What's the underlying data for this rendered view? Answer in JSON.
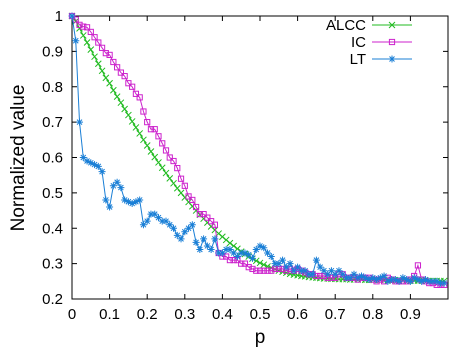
{
  "chart_data": {
    "type": "line",
    "xlabel": "p",
    "ylabel": "Normalized value",
    "xlim": [
      0,
      1
    ],
    "ylim": [
      0.2,
      1
    ],
    "xticks": [
      0,
      0.1,
      0.2,
      0.3,
      0.4,
      0.5,
      0.6,
      0.7,
      0.8,
      0.9
    ],
    "yticks": [
      0.2,
      0.3,
      0.4,
      0.5,
      0.6,
      0.7,
      0.8,
      0.9,
      1
    ],
    "grid": false,
    "legend_position": "top-right",
    "series": [
      {
        "name": "ALCC",
        "color": "#22bb22",
        "marker": "x",
        "x": [
          0.0,
          0.01,
          0.02,
          0.03,
          0.04,
          0.05,
          0.06,
          0.07,
          0.08,
          0.09,
          0.1,
          0.11,
          0.12,
          0.13,
          0.14,
          0.15,
          0.16,
          0.17,
          0.18,
          0.19,
          0.2,
          0.21,
          0.22,
          0.23,
          0.24,
          0.25,
          0.26,
          0.27,
          0.28,
          0.29,
          0.3,
          0.31,
          0.32,
          0.33,
          0.34,
          0.35,
          0.36,
          0.37,
          0.38,
          0.39,
          0.4,
          0.41,
          0.42,
          0.43,
          0.44,
          0.45,
          0.46,
          0.47,
          0.48,
          0.49,
          0.5,
          0.51,
          0.52,
          0.53,
          0.54,
          0.55,
          0.56,
          0.57,
          0.58,
          0.59,
          0.6,
          0.61,
          0.62,
          0.63,
          0.64,
          0.65,
          0.66,
          0.67,
          0.68,
          0.69,
          0.7,
          0.71,
          0.72,
          0.73,
          0.74,
          0.75,
          0.76,
          0.77,
          0.78,
          0.79,
          0.8,
          0.81,
          0.82,
          0.83,
          0.84,
          0.85,
          0.86,
          0.87,
          0.88,
          0.89,
          0.9,
          0.91,
          0.92,
          0.93,
          0.94,
          0.95,
          0.96,
          0.97,
          0.98,
          0.99
        ],
        "y": [
          1.0,
          0.985,
          0.965,
          0.945,
          0.925,
          0.905,
          0.885,
          0.865,
          0.845,
          0.825,
          0.81,
          0.79,
          0.772,
          0.755,
          0.737,
          0.72,
          0.702,
          0.685,
          0.668,
          0.65,
          0.634,
          0.617,
          0.601,
          0.586,
          0.571,
          0.556,
          0.541,
          0.527,
          0.513,
          0.5,
          0.487,
          0.474,
          0.462,
          0.45,
          0.438,
          0.427,
          0.416,
          0.405,
          0.395,
          0.385,
          0.376,
          0.367,
          0.358,
          0.35,
          0.342,
          0.334,
          0.327,
          0.32,
          0.314,
          0.308,
          0.302,
          0.297,
          0.292,
          0.288,
          0.284,
          0.28,
          0.277,
          0.274,
          0.271,
          0.269,
          0.267,
          0.265,
          0.264,
          0.262,
          0.261,
          0.26,
          0.259,
          0.258,
          0.258,
          0.257,
          0.257,
          0.256,
          0.256,
          0.256,
          0.255,
          0.255,
          0.255,
          0.255,
          0.254,
          0.254,
          0.254,
          0.254,
          0.254,
          0.253,
          0.253,
          0.253,
          0.253,
          0.253,
          0.253,
          0.252,
          0.252,
          0.252,
          0.252,
          0.252,
          0.252,
          0.251,
          0.251,
          0.251,
          0.251,
          0.251
        ]
      },
      {
        "name": "IC",
        "color": "#cc22cc",
        "marker": "square",
        "x": [
          0.0,
          0.01,
          0.02,
          0.03,
          0.04,
          0.05,
          0.06,
          0.07,
          0.08,
          0.09,
          0.1,
          0.11,
          0.12,
          0.13,
          0.14,
          0.15,
          0.16,
          0.17,
          0.18,
          0.19,
          0.2,
          0.21,
          0.22,
          0.23,
          0.24,
          0.25,
          0.26,
          0.27,
          0.28,
          0.29,
          0.3,
          0.31,
          0.32,
          0.33,
          0.34,
          0.35,
          0.36,
          0.37,
          0.38,
          0.39,
          0.4,
          0.41,
          0.42,
          0.43,
          0.44,
          0.45,
          0.46,
          0.47,
          0.48,
          0.49,
          0.5,
          0.51,
          0.52,
          0.53,
          0.54,
          0.55,
          0.56,
          0.57,
          0.58,
          0.59,
          0.6,
          0.61,
          0.62,
          0.63,
          0.64,
          0.65,
          0.66,
          0.67,
          0.68,
          0.69,
          0.7,
          0.71,
          0.72,
          0.73,
          0.74,
          0.75,
          0.76,
          0.77,
          0.78,
          0.79,
          0.8,
          0.81,
          0.82,
          0.83,
          0.84,
          0.85,
          0.86,
          0.87,
          0.88,
          0.89,
          0.9,
          0.91,
          0.92,
          0.93,
          0.94,
          0.95,
          0.96,
          0.97,
          0.98,
          0.99
        ],
        "y": [
          1.0,
          0.99,
          0.975,
          0.97,
          0.968,
          0.955,
          0.94,
          0.925,
          0.91,
          0.895,
          0.89,
          0.87,
          0.855,
          0.84,
          0.83,
          0.81,
          0.8,
          0.78,
          0.77,
          0.73,
          0.7,
          0.68,
          0.68,
          0.66,
          0.64,
          0.62,
          0.6,
          0.59,
          0.57,
          0.54,
          0.52,
          0.49,
          0.48,
          0.46,
          0.44,
          0.44,
          0.43,
          0.42,
          0.41,
          0.33,
          0.32,
          0.32,
          0.31,
          0.31,
          0.31,
          0.3,
          0.3,
          0.29,
          0.285,
          0.28,
          0.28,
          0.28,
          0.28,
          0.28,
          0.285,
          0.285,
          0.285,
          0.28,
          0.285,
          0.28,
          0.285,
          0.28,
          0.275,
          0.27,
          0.27,
          0.265,
          0.265,
          0.265,
          0.26,
          0.26,
          0.26,
          0.27,
          0.27,
          0.26,
          0.26,
          0.26,
          0.255,
          0.26,
          0.26,
          0.26,
          0.255,
          0.25,
          0.255,
          0.25,
          0.26,
          0.255,
          0.25,
          0.25,
          0.25,
          0.25,
          0.255,
          0.265,
          0.295,
          0.255,
          0.25,
          0.245,
          0.245,
          0.24,
          0.24,
          0.24
        ]
      },
      {
        "name": "LT",
        "color": "#1a7fd6",
        "marker": "star",
        "x": [
          0.0,
          0.01,
          0.02,
          0.03,
          0.04,
          0.05,
          0.06,
          0.07,
          0.08,
          0.09,
          0.1,
          0.11,
          0.12,
          0.13,
          0.14,
          0.15,
          0.16,
          0.17,
          0.18,
          0.19,
          0.2,
          0.21,
          0.22,
          0.23,
          0.24,
          0.25,
          0.26,
          0.27,
          0.28,
          0.29,
          0.3,
          0.31,
          0.32,
          0.33,
          0.34,
          0.35,
          0.36,
          0.37,
          0.38,
          0.39,
          0.4,
          0.41,
          0.42,
          0.43,
          0.44,
          0.45,
          0.46,
          0.47,
          0.48,
          0.49,
          0.5,
          0.51,
          0.52,
          0.53,
          0.54,
          0.55,
          0.56,
          0.57,
          0.58,
          0.59,
          0.6,
          0.61,
          0.62,
          0.63,
          0.64,
          0.65,
          0.66,
          0.67,
          0.68,
          0.69,
          0.7,
          0.71,
          0.72,
          0.73,
          0.74,
          0.75,
          0.76,
          0.77,
          0.78,
          0.79,
          0.8,
          0.81,
          0.82,
          0.83,
          0.84,
          0.85,
          0.86,
          0.87,
          0.88,
          0.89,
          0.9,
          0.91,
          0.92,
          0.93,
          0.94,
          0.95,
          0.96,
          0.97,
          0.98,
          0.99
        ],
        "y": [
          1.0,
          0.93,
          0.7,
          0.6,
          0.59,
          0.585,
          0.58,
          0.575,
          0.56,
          0.48,
          0.46,
          0.52,
          0.53,
          0.515,
          0.48,
          0.475,
          0.47,
          0.475,
          0.48,
          0.41,
          0.42,
          0.44,
          0.44,
          0.43,
          0.42,
          0.42,
          0.41,
          0.4,
          0.38,
          0.37,
          0.39,
          0.4,
          0.41,
          0.36,
          0.34,
          0.37,
          0.35,
          0.34,
          0.37,
          0.33,
          0.33,
          0.34,
          0.34,
          0.33,
          0.32,
          0.33,
          0.33,
          0.325,
          0.315,
          0.34,
          0.35,
          0.345,
          0.33,
          0.32,
          0.3,
          0.3,
          0.31,
          0.29,
          0.3,
          0.28,
          0.29,
          0.28,
          0.28,
          0.27,
          0.27,
          0.31,
          0.29,
          0.28,
          0.27,
          0.28,
          0.27,
          0.28,
          0.27,
          0.26,
          0.26,
          0.27,
          0.26,
          0.265,
          0.26,
          0.255,
          0.26,
          0.255,
          0.26,
          0.265,
          0.25,
          0.255,
          0.255,
          0.25,
          0.26,
          0.255,
          0.25,
          0.26,
          0.255,
          0.25,
          0.255,
          0.25,
          0.25,
          0.25,
          0.245,
          0.245
        ]
      }
    ]
  }
}
